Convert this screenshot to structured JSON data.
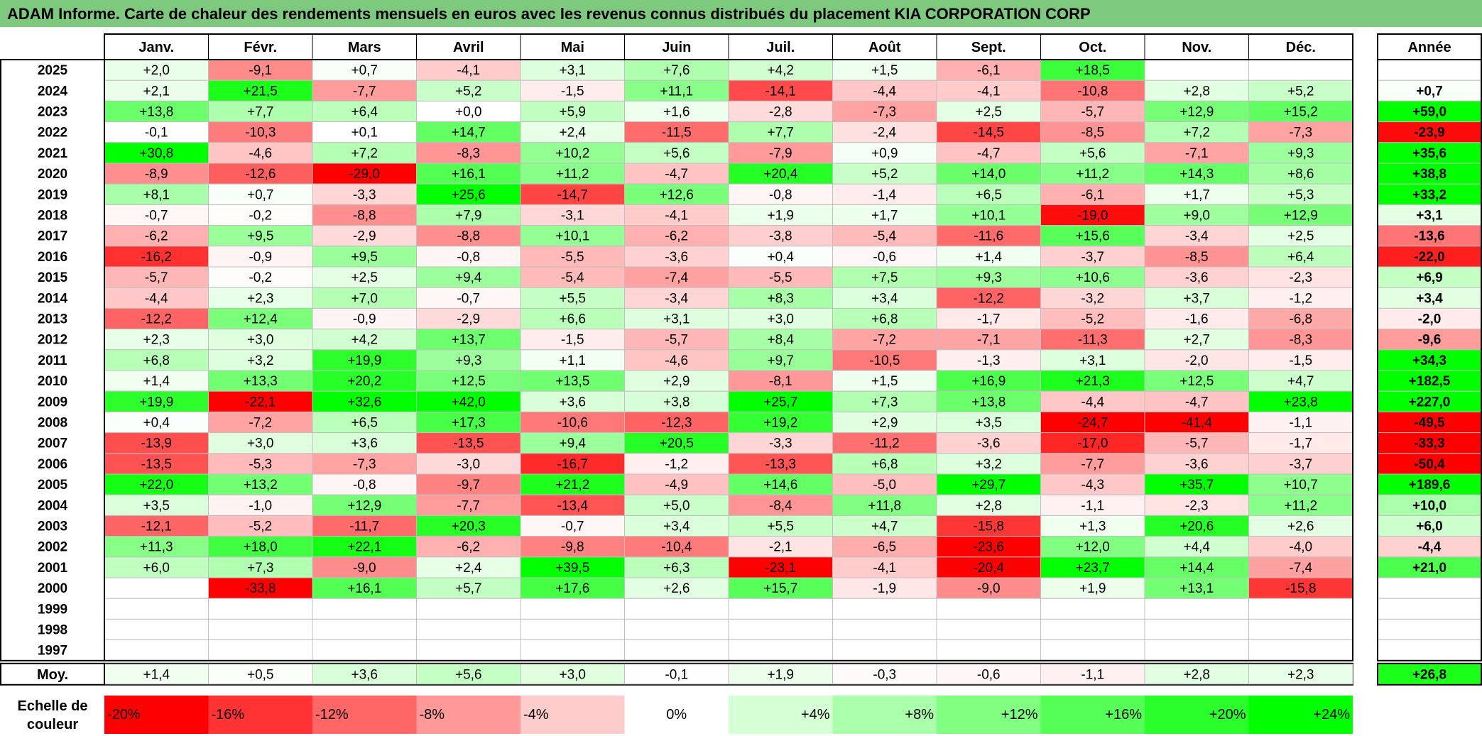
{
  "title": "ADAM Informe. Carte de chaleur des rendements mensuels en euros avec les revenus connus distribués du placement KIA CORPORATION CORP",
  "chart_data": {
    "type": "heatmap",
    "columns": [
      "Janv.",
      "Févr.",
      "Mars",
      "Avril",
      "Mai",
      "Juin",
      "Juil.",
      "Août",
      "Sept.",
      "Oct.",
      "Nov.",
      "Déc."
    ],
    "year_column_label": "Année",
    "rows": [
      {
        "year": "2025",
        "months": [
          "+2,0",
          "-9,1",
          "+0,7",
          "-4,1",
          "+3,1",
          "+7,6",
          "+4,2",
          "+1,5",
          "-6,1",
          "+18,5",
          "",
          ""
        ],
        "annual": ""
      },
      {
        "year": "2024",
        "months": [
          "+2,1",
          "+21,5",
          "-7,7",
          "+5,2",
          "-1,5",
          "+11,1",
          "-14,1",
          "-4,4",
          "-4,1",
          "-10,8",
          "+2,8",
          "+5,2"
        ],
        "annual": "+0,7"
      },
      {
        "year": "2023",
        "months": [
          "+13,8",
          "+7,7",
          "+6,4",
          "+0,0",
          "+5,9",
          "+1,6",
          "-2,8",
          "-7,3",
          "+2,5",
          "-5,7",
          "+12,9",
          "+15,2"
        ],
        "annual": "+59,0"
      },
      {
        "year": "2022",
        "months": [
          "-0,1",
          "-10,3",
          "+0,1",
          "+14,7",
          "+2,4",
          "-11,5",
          "+7,7",
          "-2,4",
          "-14,5",
          "-8,5",
          "+7,2",
          "-7,3"
        ],
        "annual": "-23,9"
      },
      {
        "year": "2021",
        "months": [
          "+30,8",
          "-4,6",
          "+7,2",
          "-8,3",
          "+10,2",
          "+5,6",
          "-7,9",
          "+0,9",
          "-4,7",
          "+5,6",
          "-7,1",
          "+9,3"
        ],
        "annual": "+35,6"
      },
      {
        "year": "2020",
        "months": [
          "-8,9",
          "-12,6",
          "-29,0",
          "+16,1",
          "+11,2",
          "-4,7",
          "+20,4",
          "+5,2",
          "+14,0",
          "+11,2",
          "+14,3",
          "+8,6"
        ],
        "annual": "+38,8"
      },
      {
        "year": "2019",
        "months": [
          "+8,1",
          "+0,7",
          "-3,3",
          "+25,6",
          "-14,7",
          "+12,6",
          "-0,8",
          "-1,4",
          "+6,5",
          "-6,1",
          "+1,7",
          "+5,3"
        ],
        "annual": "+33,2"
      },
      {
        "year": "2018",
        "months": [
          "-0,7",
          "-0,2",
          "-8,8",
          "+7,9",
          "-3,1",
          "-4,1",
          "+1,9",
          "+1,7",
          "+10,1",
          "-19,0",
          "+9,0",
          "+12,9"
        ],
        "annual": "+3,1"
      },
      {
        "year": "2017",
        "months": [
          "-6,2",
          "+9,5",
          "-2,9",
          "-8,8",
          "+10,1",
          "-6,2",
          "-3,8",
          "-5,4",
          "-11,6",
          "+15,6",
          "-3,4",
          "+2,5"
        ],
        "annual": "-13,6"
      },
      {
        "year": "2016",
        "months": [
          "-16,2",
          "-0,9",
          "+9,5",
          "-0,8",
          "-5,5",
          "-3,6",
          "+0,4",
          "-0,6",
          "+1,4",
          "-3,7",
          "-8,5",
          "+6,4"
        ],
        "annual": "-22,0"
      },
      {
        "year": "2015",
        "months": [
          "-5,7",
          "-0,2",
          "+2,5",
          "+9,4",
          "-5,4",
          "-7,4",
          "-5,5",
          "+7,5",
          "+9,3",
          "+10,6",
          "-3,6",
          "-2,3"
        ],
        "annual": "+6,9"
      },
      {
        "year": "2014",
        "months": [
          "-4,4",
          "+2,3",
          "+7,0",
          "-0,7",
          "+5,5",
          "-3,4",
          "+8,3",
          "+3,4",
          "-12,2",
          "-3,2",
          "+3,7",
          "-1,2"
        ],
        "annual": "+3,4"
      },
      {
        "year": "2013",
        "months": [
          "-12,2",
          "+12,4",
          "-0,9",
          "-2,9",
          "+6,6",
          "+3,1",
          "+3,0",
          "+6,8",
          "-1,7",
          "-5,2",
          "-1,6",
          "-6,8"
        ],
        "annual": "-2,0"
      },
      {
        "year": "2012",
        "months": [
          "+2,3",
          "+3,0",
          "+4,2",
          "+13,7",
          "-1,5",
          "-5,7",
          "+8,4",
          "-7,2",
          "-7,1",
          "-11,3",
          "+2,7",
          "-8,3"
        ],
        "annual": "-9,6"
      },
      {
        "year": "2011",
        "months": [
          "+6,8",
          "+3,2",
          "+19,9",
          "+9,3",
          "+1,1",
          "-4,6",
          "+9,7",
          "-10,5",
          "-1,3",
          "+3,1",
          "-2,0",
          "-1,5"
        ],
        "annual": "+34,3"
      },
      {
        "year": "2010",
        "months": [
          "+1,4",
          "+13,3",
          "+20,2",
          "+12,5",
          "+13,5",
          "+2,9",
          "-8,1",
          "+1,5",
          "+16,9",
          "+21,3",
          "+12,5",
          "+4,7"
        ],
        "annual": "+182,5"
      },
      {
        "year": "2009",
        "months": [
          "+19,9",
          "-22,1",
          "+32,6",
          "+42,0",
          "+3,6",
          "+3,8",
          "+25,7",
          "+7,3",
          "+13,8",
          "-4,4",
          "-4,7",
          "+23,8"
        ],
        "annual": "+227,0"
      },
      {
        "year": "2008",
        "months": [
          "+0,4",
          "-7,2",
          "+6,5",
          "+17,3",
          "-10,6",
          "-12,3",
          "+19,2",
          "+2,9",
          "+3,5",
          "-24,7",
          "-41,4",
          "-1,1"
        ],
        "annual": "-49,5"
      },
      {
        "year": "2007",
        "months": [
          "-13,9",
          "+3,0",
          "+3,6",
          "-13,5",
          "+9,4",
          "+20,5",
          "-3,3",
          "-11,2",
          "-3,6",
          "-17,0",
          "-5,7",
          "-1,7"
        ],
        "annual": "-33,3"
      },
      {
        "year": "2006",
        "months": [
          "-13,5",
          "-5,3",
          "-7,3",
          "-3,0",
          "-16,7",
          "-1,2",
          "-13,3",
          "+6,8",
          "+3,2",
          "-7,7",
          "-3,6",
          "-3,7"
        ],
        "annual": "-50,4"
      },
      {
        "year": "2005",
        "months": [
          "+22,0",
          "+13,2",
          "-0,8",
          "-9,7",
          "+21,2",
          "-4,9",
          "+14,6",
          "-5,0",
          "+29,7",
          "-4,3",
          "+35,7",
          "+10,7"
        ],
        "annual": "+189,6"
      },
      {
        "year": "2004",
        "months": [
          "+3,5",
          "-1,0",
          "+12,9",
          "-7,7",
          "-13,4",
          "+5,0",
          "-8,4",
          "+11,8",
          "+2,8",
          "-1,1",
          "-2,3",
          "+11,2"
        ],
        "annual": "+10,0"
      },
      {
        "year": "2003",
        "months": [
          "-12,1",
          "-5,2",
          "-11,7",
          "+20,3",
          "-0,7",
          "+3,4",
          "+5,5",
          "+4,7",
          "-15,8",
          "+1,3",
          "+20,6",
          "+2,6"
        ],
        "annual": "+6,0"
      },
      {
        "year": "2002",
        "months": [
          "+11,3",
          "+18,0",
          "+22,1",
          "-6,2",
          "-9,8",
          "-10,4",
          "-2,1",
          "-6,5",
          "-23,6",
          "+12,0",
          "+4,4",
          "-4,0"
        ],
        "annual": "-4,4"
      },
      {
        "year": "2001",
        "months": [
          "+6,0",
          "+7,3",
          "-9,0",
          "+2,4",
          "+39,5",
          "+6,3",
          "-23,1",
          "-4,1",
          "-20,4",
          "+23,7",
          "+14,4",
          "-7,4"
        ],
        "annual": "+21,0"
      },
      {
        "year": "2000",
        "months": [
          "",
          "-33,8",
          "+16,1",
          "+5,7",
          "+17,6",
          "+2,6",
          "+15,7",
          "-1,9",
          "-9,0",
          "+1,9",
          "+13,1",
          "-15,8"
        ],
        "annual": ""
      },
      {
        "year": "1999",
        "months": [
          "",
          "",
          "",
          "",
          "",
          "",
          "",
          "",
          "",
          "",
          "",
          ""
        ],
        "annual": ""
      },
      {
        "year": "1998",
        "months": [
          "",
          "",
          "",
          "",
          "",
          "",
          "",
          "",
          "",
          "",
          "",
          ""
        ],
        "annual": ""
      },
      {
        "year": "1997",
        "months": [
          "",
          "",
          "",
          "",
          "",
          "",
          "",
          "",
          "",
          "",
          "",
          ""
        ],
        "annual": ""
      }
    ],
    "average": {
      "label": "Moy.",
      "months": [
        "+1,4",
        "+0,5",
        "+3,6",
        "+5,6",
        "+3,0",
        "-0,1",
        "+1,9",
        "-0,3",
        "-0,6",
        "-1,1",
        "+2,8",
        "+2,3"
      ],
      "annual": "+26,8"
    },
    "scale": {
      "label_line1": "Echelle de",
      "label_line2": "couleur",
      "items": [
        "-20%",
        "-16%",
        "-12%",
        "-8%",
        "-4%",
        "0%",
        "+4%",
        "+8%",
        "+12%",
        "+16%",
        "+20%",
        "+24%"
      ],
      "values": [
        -20,
        -16,
        -12,
        -8,
        -4,
        0,
        4,
        8,
        12,
        16,
        20,
        24
      ]
    },
    "colors": {
      "title_bg": "#7dc97d",
      "neg_max": "#ff0000",
      "pos_max": "#00ff00",
      "neutral": "#ffffff",
      "grid": "#bfbfbf"
    }
  }
}
